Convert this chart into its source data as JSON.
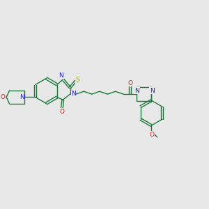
{
  "bg_color": "#e8e8e8",
  "bond_color": "#1a7a3a",
  "N_color": "#2222cc",
  "O_color": "#cc2222",
  "S_color": "#aaaa00",
  "figsize": [
    3.0,
    3.0
  ],
  "dpi": 100,
  "xlim": [
    0,
    10
  ],
  "ylim": [
    0,
    10
  ]
}
